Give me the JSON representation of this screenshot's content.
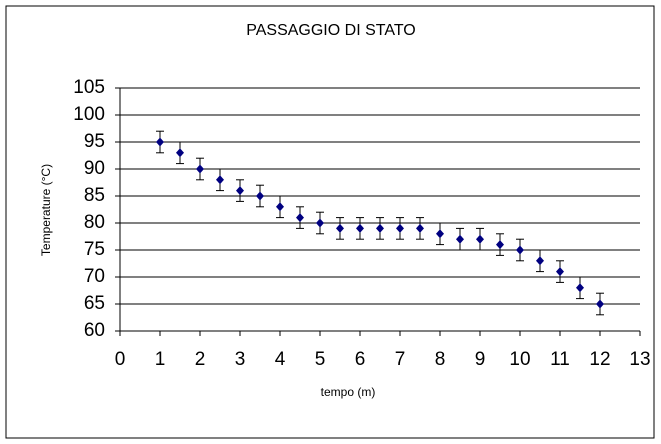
{
  "chart_data": {
    "type": "scatter",
    "title": "PASSAGGIO DI STATO",
    "x_label": "tempo (m)",
    "y_label": "Temperature (°C)",
    "series": [
      {
        "color": "#000080",
        "x": [
          1,
          1.5,
          2,
          2.5,
          3,
          3.5,
          4,
          4.5,
          5,
          5.5,
          6,
          6.5,
          7,
          7.5,
          8,
          8.5,
          9,
          9.5,
          10,
          10.5,
          11,
          11.5,
          12
        ],
        "values": [
          95,
          93,
          90,
          88,
          86,
          85,
          83,
          81,
          80,
          79,
          79,
          79,
          79,
          79,
          78,
          77,
          77,
          76,
          75,
          73,
          71,
          68,
          65
        ],
        "errors": [
          2,
          2,
          2,
          2,
          2,
          2,
          2,
          2,
          2,
          2,
          2,
          2,
          2,
          2,
          2,
          2,
          2,
          2,
          2,
          2,
          2,
          2,
          2
        ]
      }
    ],
    "xlim": [
      0,
      13
    ],
    "xticks": [
      0,
      1,
      2,
      3,
      4,
      5,
      6,
      7,
      8,
      9,
      10,
      11,
      12,
      13
    ],
    "ylim": [
      60,
      105
    ],
    "yticks": [
      60,
      65,
      70,
      75,
      80,
      85,
      90,
      95,
      100,
      105
    ],
    "grid": true
  }
}
